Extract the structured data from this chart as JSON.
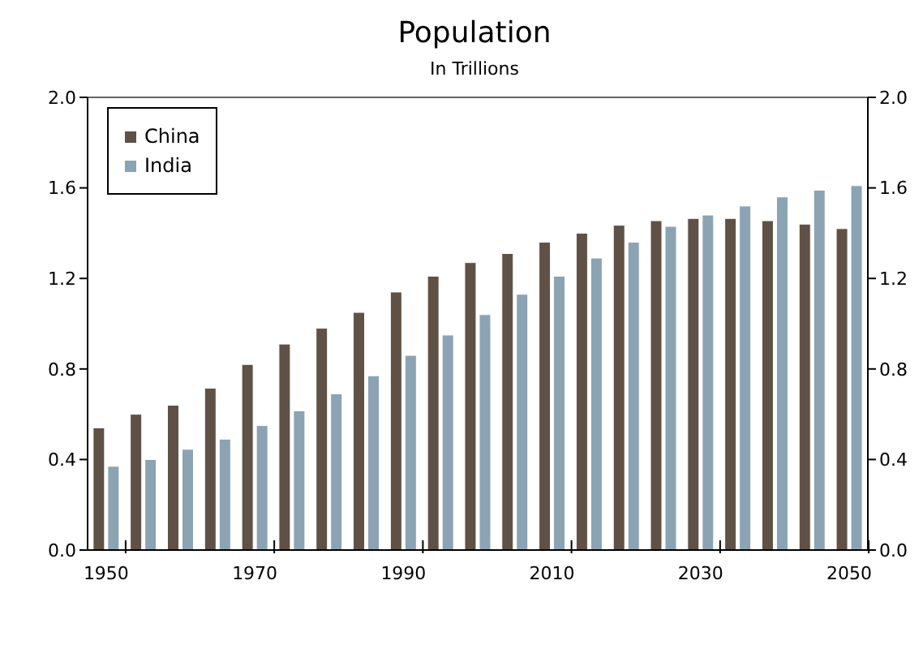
{
  "chart_data": {
    "type": "bar",
    "title": "Population",
    "subtitle": "In Trillions",
    "categories": [
      "1950",
      null,
      null,
      null,
      "1970",
      null,
      null,
      null,
      "1990",
      null,
      null,
      null,
      "2010",
      null,
      null,
      null,
      "2030",
      null,
      null,
      null,
      "2050"
    ],
    "series": [
      {
        "name": "China",
        "color": "#5f5146",
        "values": [
          0.54,
          0.6,
          0.64,
          0.715,
          0.82,
          0.91,
          0.98,
          1.05,
          1.14,
          1.21,
          1.27,
          1.31,
          1.36,
          1.4,
          1.435,
          1.455,
          1.465,
          1.465,
          1.455,
          1.44,
          1.42
        ]
      },
      {
        "name": "India",
        "color": "#8ba3b3",
        "values": [
          0.37,
          0.4,
          0.445,
          0.49,
          0.55,
          0.615,
          0.69,
          0.77,
          0.86,
          0.95,
          1.04,
          1.13,
          1.21,
          1.29,
          1.36,
          1.43,
          1.48,
          1.52,
          1.56,
          1.59,
          1.61
        ]
      }
    ],
    "ylim": [
      0,
      2
    ],
    "yticks": [
      {
        "value": 0,
        "label": "0.0"
      },
      {
        "value": 0.4,
        "label": "0.4"
      },
      {
        "value": 0.8,
        "label": "0.8"
      },
      {
        "value": 1.2,
        "label": "1.2"
      },
      {
        "value": 1.6,
        "label": "1.6"
      },
      {
        "value": 2,
        "label": "2.0"
      }
    ],
    "y2lim": [
      0,
      2
    ],
    "y2ticks": [
      {
        "value": 0,
        "label": "0.0"
      },
      {
        "value": 0.4,
        "label": "0.4"
      },
      {
        "value": 0.8,
        "label": "0.8"
      },
      {
        "value": 1.2,
        "label": "1.2"
      },
      {
        "value": 1.6,
        "label": "1.6"
      },
      {
        "value": 2,
        "label": "2.0"
      }
    ],
    "legend": "top left",
    "grid": false
  }
}
